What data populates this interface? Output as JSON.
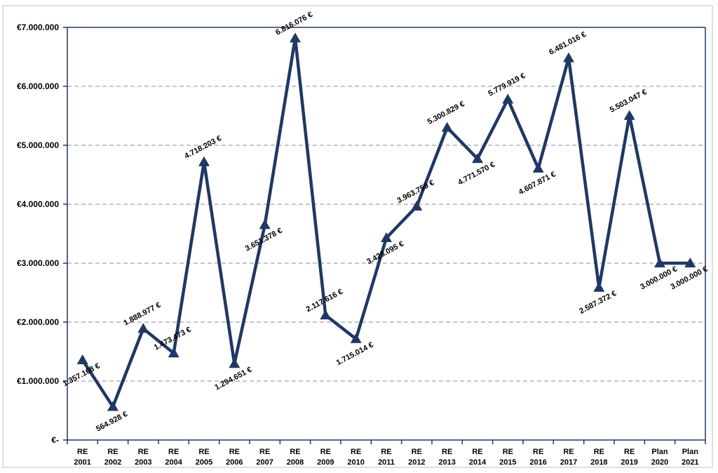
{
  "chart_data": {
    "type": "line",
    "title": "",
    "xlabel": "",
    "ylabel": "",
    "categories": [
      [
        "RE",
        "2001"
      ],
      [
        "RE",
        "2002"
      ],
      [
        "RE",
        "2003"
      ],
      [
        "RE",
        "2004"
      ],
      [
        "RE",
        "2005"
      ],
      [
        "RE",
        "2006"
      ],
      [
        "RE",
        "2007"
      ],
      [
        "RE",
        "2008"
      ],
      [
        "RE",
        "2009"
      ],
      [
        "RE",
        "2010"
      ],
      [
        "RE",
        "2011"
      ],
      [
        "RE",
        "2012"
      ],
      [
        "RE",
        "2013"
      ],
      [
        "RE",
        "2014"
      ],
      [
        "RE",
        "2015"
      ],
      [
        "RE",
        "2016"
      ],
      [
        "RE",
        "2017"
      ],
      [
        "RE",
        "2018"
      ],
      [
        "RE",
        "2019"
      ],
      [
        "Plan",
        "2020"
      ],
      [
        "Plan",
        "2021"
      ]
    ],
    "values": [
      1357168,
      564928,
      1888977,
      1473473,
      4718203,
      1294651,
      3651378,
      6816076,
      2117616,
      1715014,
      3428095,
      3963759,
      5300829,
      4771570,
      5779919,
      4607871,
      6481016,
      2587372,
      5503047,
      3000000,
      3000000
    ],
    "data_labels": [
      "1.357.168 €",
      "564.928 €",
      "1.888.977 €",
      "1.473.473 €",
      "4.718.203 €",
      "1.294.651 €",
      "3.651.378 €",
      "6.816.076 €",
      "2.117.616 €",
      "1.715.014 €",
      "3.428.095 €",
      "3.963.759 €",
      "5.300.829 €",
      "4.771.570 €",
      "5.779.919 €",
      "4.607.871 €",
      "6.481.016 €",
      "2.587.372 €",
      "5.503.047 €",
      "3.000.000 €",
      "3.000.000 €"
    ],
    "label_side": [
      "below",
      "below",
      "above",
      "above",
      "above",
      "below",
      "below",
      "above",
      "above",
      "below",
      "below",
      "above",
      "above",
      "below",
      "above",
      "below",
      "above",
      "below",
      "above",
      "below",
      "below"
    ],
    "ylim": [
      0,
      7000000
    ],
    "yticks": [
      0,
      1000000,
      2000000,
      3000000,
      4000000,
      5000000,
      6000000,
      7000000
    ],
    "ytick_labels": [
      "€-",
      "€1.000.000",
      "€2.000.000",
      "€3.000.000",
      "€4.000.000",
      "€5.000.000",
      "€6.000.000",
      "€7.000.000"
    ],
    "grid": true,
    "grid_style": "dashed",
    "legend": "none",
    "marker": "triangle",
    "colors": {
      "series": "#1f3864",
      "axis": "#1f3864",
      "grid": "#8c8c8c",
      "frame": "#bfbfbf"
    }
  }
}
